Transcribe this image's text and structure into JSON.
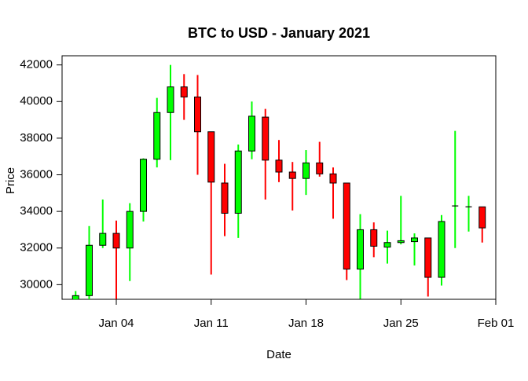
{
  "chart_data": {
    "type": "candlestick",
    "title": "BTC to USD - January 2021",
    "xlabel": "Date",
    "ylabel": "Price",
    "x_ticks": [
      {
        "date": "2021-01-04",
        "label": "Jan 04"
      },
      {
        "date": "2021-01-11",
        "label": "Jan 11"
      },
      {
        "date": "2021-01-18",
        "label": "Jan 18"
      },
      {
        "date": "2021-01-25",
        "label": "Jan 25"
      },
      {
        "date": "2021-02-01",
        "label": "Feb 01"
      }
    ],
    "y_ticks": [
      30000,
      32000,
      34000,
      36000,
      38000,
      40000,
      42000
    ],
    "y_tick_labels": [
      "30000",
      "32000",
      "34000",
      "36000",
      "38000",
      "40000",
      "42000"
    ],
    "xlim": [
      "2020-12-31",
      "2021-02-01"
    ],
    "ylim": [
      29200,
      42500
    ],
    "colors": {
      "up": "#00ff00",
      "down": "#ff0000",
      "outline": "#000000"
    },
    "candles": [
      {
        "date": "2021-01-01",
        "open": 29100,
        "high": 29650,
        "low": 28900,
        "close": 29400
      },
      {
        "date": "2021-01-02",
        "open": 29400,
        "high": 33200,
        "low": 29200,
        "close": 32150
      },
      {
        "date": "2021-01-03",
        "open": 32150,
        "high": 34650,
        "low": 32000,
        "close": 32800
      },
      {
        "date": "2021-01-04",
        "open": 32800,
        "high": 33500,
        "low": 28800,
        "close": 32000
      },
      {
        "date": "2021-01-05",
        "open": 32000,
        "high": 34450,
        "low": 30200,
        "close": 34000
      },
      {
        "date": "2021-01-06",
        "open": 34000,
        "high": 36900,
        "low": 33450,
        "close": 36850
      },
      {
        "date": "2021-01-07",
        "open": 36850,
        "high": 40200,
        "low": 36400,
        "close": 39400
      },
      {
        "date": "2021-01-08",
        "open": 39400,
        "high": 42000,
        "low": 36800,
        "close": 40800
      },
      {
        "date": "2021-01-09",
        "open": 40800,
        "high": 41500,
        "low": 39000,
        "close": 40250
      },
      {
        "date": "2021-01-10",
        "open": 40250,
        "high": 41450,
        "low": 36000,
        "close": 38350
      },
      {
        "date": "2021-01-11",
        "open": 38350,
        "high": 38350,
        "low": 30550,
        "close": 35600
      },
      {
        "date": "2021-01-12",
        "open": 35550,
        "high": 36600,
        "low": 32650,
        "close": 33900
      },
      {
        "date": "2021-01-13",
        "open": 33900,
        "high": 37650,
        "low": 32550,
        "close": 37300
      },
      {
        "date": "2021-01-14",
        "open": 37300,
        "high": 40000,
        "low": 36850,
        "close": 39200
      },
      {
        "date": "2021-01-15",
        "open": 39150,
        "high": 39600,
        "low": 34650,
        "close": 36800
      },
      {
        "date": "2021-01-16",
        "open": 36800,
        "high": 37900,
        "low": 35600,
        "close": 36150
      },
      {
        "date": "2021-01-17",
        "open": 36150,
        "high": 36700,
        "low": 34050,
        "close": 35800
      },
      {
        "date": "2021-01-18",
        "open": 35800,
        "high": 37350,
        "low": 34900,
        "close": 36650
      },
      {
        "date": "2021-01-19",
        "open": 36650,
        "high": 37800,
        "low": 35900,
        "close": 36050
      },
      {
        "date": "2021-01-20",
        "open": 36050,
        "high": 36400,
        "low": 33600,
        "close": 35550
      },
      {
        "date": "2021-01-21",
        "open": 35550,
        "high": 35550,
        "low": 30250,
        "close": 30850
      },
      {
        "date": "2021-01-22",
        "open": 30850,
        "high": 33850,
        "low": 29200,
        "close": 33000
      },
      {
        "date": "2021-01-23",
        "open": 33000,
        "high": 33400,
        "low": 31500,
        "close": 32100
      },
      {
        "date": "2021-01-24",
        "open": 32050,
        "high": 32950,
        "low": 31150,
        "close": 32300
      },
      {
        "date": "2021-01-25",
        "open": 32300,
        "high": 34850,
        "low": 32200,
        "close": 32400
      },
      {
        "date": "2021-01-26",
        "open": 32350,
        "high": 32800,
        "low": 31050,
        "close": 32550
      },
      {
        "date": "2021-01-27",
        "open": 32550,
        "high": 32550,
        "low": 29350,
        "close": 30400
      },
      {
        "date": "2021-01-28",
        "open": 30400,
        "high": 33800,
        "low": 29950,
        "close": 33450
      },
      {
        "date": "2021-01-29",
        "open": 34300,
        "high": 38400,
        "low": 32000,
        "close": 34300
      },
      {
        "date": "2021-01-30",
        "open": 34250,
        "high": 34850,
        "low": 32900,
        "close": 34250
      },
      {
        "date": "2021-01-31",
        "open": 34250,
        "high": 34250,
        "low": 32300,
        "close": 33100
      }
    ]
  }
}
